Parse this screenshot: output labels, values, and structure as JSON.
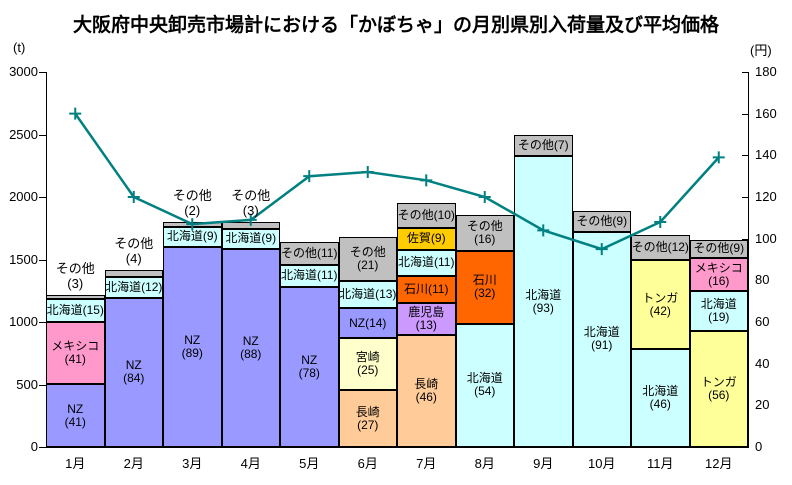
{
  "title": "大阪府中央卸売市場計における「かぼちゃ」の月別県別入荷量及び平均価格",
  "left_axis": {
    "unit": "(t)",
    "min": 0,
    "max": 3000,
    "ticks": [
      0,
      500,
      1000,
      1500,
      2000,
      2500,
      3000
    ]
  },
  "right_axis": {
    "unit": "(円)",
    "min": 0,
    "max": 180,
    "ticks": [
      0,
      20,
      40,
      60,
      80,
      100,
      120,
      140,
      160,
      180
    ]
  },
  "colors": {
    "NZ": "#9999FF",
    "メキシコ": "#FF99CC",
    "北海道": "#CCFFFF",
    "その他": "#C0C0C0",
    "長崎": "#FFCC99",
    "宮崎": "#FFFFCC",
    "鹿児島": "#CC99FF",
    "石川": "#FF6600",
    "佐賀": "#FFCC00",
    "トンガ": "#FFFF99",
    "price_line": "#008080"
  },
  "chart_data": {
    "type": "stacked-bar+line",
    "title": "大阪府中央卸売市場計における「かぼちゃ」の月別県別入荷量及び平均価格",
    "categories": [
      "1月",
      "2月",
      "3月",
      "4月",
      "5月",
      "6月",
      "7月",
      "8月",
      "9月",
      "10月",
      "11月",
      "12月"
    ],
    "bar_unit": "t",
    "bar_axis_range": [
      0,
      3000
    ],
    "line_unit": "円",
    "line_axis_range": [
      0,
      180
    ],
    "grid": false,
    "legend": "none",
    "bar_totals_t": [
      1220,
      1420,
      1800,
      1800,
      1640,
      1680,
      1950,
      1860,
      2500,
      1890,
      1700,
      1660
    ],
    "bars": [
      {
        "month": "1月",
        "total_t": 1220,
        "segments": [
          {
            "name": "NZ",
            "share_pct": 41,
            "label_lines": [
              "NZ",
              "(41)"
            ]
          },
          {
            "name": "メキシコ",
            "share_pct": 41,
            "label_lines": [
              "メキシコ",
              "(41)"
            ]
          },
          {
            "name": "北海道",
            "share_pct": 15,
            "label_lines": [
              "北海道(15)"
            ]
          },
          {
            "name": "その他",
            "share_pct": 3,
            "label_lines": [],
            "outside_label_lines": [
              "その他",
              "(3)"
            ]
          }
        ]
      },
      {
        "month": "2月",
        "total_t": 1420,
        "segments": [
          {
            "name": "NZ",
            "share_pct": 84,
            "label_lines": [
              "NZ",
              "(84)"
            ]
          },
          {
            "name": "北海道",
            "share_pct": 12,
            "label_lines": [
              "北海道(12)"
            ]
          },
          {
            "name": "その他",
            "share_pct": 4,
            "label_lines": [],
            "outside_label_lines": [
              "その他",
              "(4)"
            ]
          }
        ]
      },
      {
        "month": "3月",
        "total_t": 1800,
        "segments": [
          {
            "name": "NZ",
            "share_pct": 89,
            "label_lines": [
              "NZ",
              "(89)"
            ]
          },
          {
            "name": "北海道",
            "share_pct": 9,
            "label_lines": [
              "北海道(9)"
            ]
          },
          {
            "name": "その他",
            "share_pct": 2,
            "label_lines": [],
            "outside_label_lines": [
              "その他",
              "(2)"
            ]
          }
        ]
      },
      {
        "month": "4月",
        "total_t": 1800,
        "segments": [
          {
            "name": "NZ",
            "share_pct": 88,
            "label_lines": [
              "NZ",
              "(88)"
            ]
          },
          {
            "name": "北海道",
            "share_pct": 9,
            "label_lines": [
              "北海道(9)"
            ]
          },
          {
            "name": "その他",
            "share_pct": 3,
            "label_lines": [],
            "outside_label_lines": [
              "その他",
              "(3)"
            ]
          }
        ]
      },
      {
        "month": "5月",
        "total_t": 1640,
        "segments": [
          {
            "name": "NZ",
            "share_pct": 78,
            "label_lines": [
              "NZ",
              "(78)"
            ]
          },
          {
            "name": "北海道",
            "share_pct": 11,
            "label_lines": [
              "北海道(11)"
            ]
          },
          {
            "name": "その他",
            "share_pct": 11,
            "label_lines": [
              "その他(11)"
            ]
          }
        ]
      },
      {
        "month": "6月",
        "total_t": 1680,
        "segments": [
          {
            "name": "長崎",
            "share_pct": 27,
            "label_lines": [
              "長崎",
              "(27)"
            ]
          },
          {
            "name": "宮崎",
            "share_pct": 25,
            "label_lines": [
              "宮崎",
              "(25)"
            ]
          },
          {
            "name": "NZ",
            "share_pct": 14,
            "label_lines": [
              "NZ(14)"
            ]
          },
          {
            "name": "北海道",
            "share_pct": 13,
            "label_lines": [
              "北海道(13)"
            ]
          },
          {
            "name": "その他",
            "share_pct": 21,
            "label_lines": [
              "その他",
              "(21)"
            ]
          }
        ]
      },
      {
        "month": "7月",
        "total_t": 1950,
        "segments": [
          {
            "name": "長崎",
            "share_pct": 46,
            "label_lines": [
              "長崎",
              "(46)"
            ]
          },
          {
            "name": "鹿児島",
            "share_pct": 13,
            "label_lines": [
              "鹿児島",
              "(13)"
            ]
          },
          {
            "name": "石川",
            "share_pct": 11,
            "label_lines": [
              "石川(11)"
            ]
          },
          {
            "name": "北海道",
            "share_pct": 11,
            "label_lines": [
              "北海道(11)"
            ]
          },
          {
            "name": "佐賀",
            "share_pct": 9,
            "label_lines": [
              "佐賀(9)"
            ]
          },
          {
            "name": "その他",
            "share_pct": 10,
            "label_lines": [
              "その他(10)"
            ]
          }
        ]
      },
      {
        "month": "8月",
        "total_t": 1860,
        "segments": [
          {
            "name": "北海道",
            "share_pct": 54,
            "label_lines": [
              "北海道",
              "(54)"
            ]
          },
          {
            "name": "石川",
            "share_pct": 32,
            "label_lines": [
              "石川",
              "(32)"
            ]
          },
          {
            "name": "その他",
            "share_pct": 16,
            "label_lines": [
              "その他",
              "(16)"
            ]
          }
        ]
      },
      {
        "month": "9月",
        "total_t": 2500,
        "segments": [
          {
            "name": "北海道",
            "share_pct": 93,
            "label_lines": [
              "北海道",
              "(93)"
            ]
          },
          {
            "name": "その他",
            "share_pct": 7,
            "label_lines": [
              "その他(7)"
            ]
          }
        ]
      },
      {
        "month": "10月",
        "total_t": 1890,
        "segments": [
          {
            "name": "北海道",
            "share_pct": 91,
            "label_lines": [
              "北海道",
              "(91)"
            ]
          },
          {
            "name": "その他",
            "share_pct": 9,
            "label_lines": [
              "その他(9)"
            ]
          }
        ]
      },
      {
        "month": "11月",
        "total_t": 1700,
        "segments": [
          {
            "name": "北海道",
            "share_pct": 46,
            "label_lines": [
              "北海道",
              "(46)"
            ]
          },
          {
            "name": "トンガ",
            "share_pct": 42,
            "label_lines": [
              "トンガ",
              "(42)"
            ]
          },
          {
            "name": "その他",
            "share_pct": 12,
            "label_lines": [
              "その他(12)"
            ]
          }
        ]
      },
      {
        "month": "12月",
        "total_t": 1660,
        "segments": [
          {
            "name": "トンガ",
            "share_pct": 56,
            "label_lines": [
              "トンガ",
              "(56)"
            ]
          },
          {
            "name": "北海道",
            "share_pct": 19,
            "label_lines": [
              "北海道",
              "(19)"
            ]
          },
          {
            "name": "メキシコ",
            "share_pct": 16,
            "label_lines": [
              "メキシコ",
              "(16)"
            ]
          },
          {
            "name": "その他",
            "share_pct": 9,
            "label_lines": [
              "その他(9)"
            ]
          }
        ]
      }
    ],
    "line_series": {
      "name": "平均価格",
      "unit": "円",
      "values_yen": [
        160,
        120,
        107,
        109,
        130,
        132,
        128,
        120,
        104,
        95,
        108,
        139
      ]
    }
  }
}
